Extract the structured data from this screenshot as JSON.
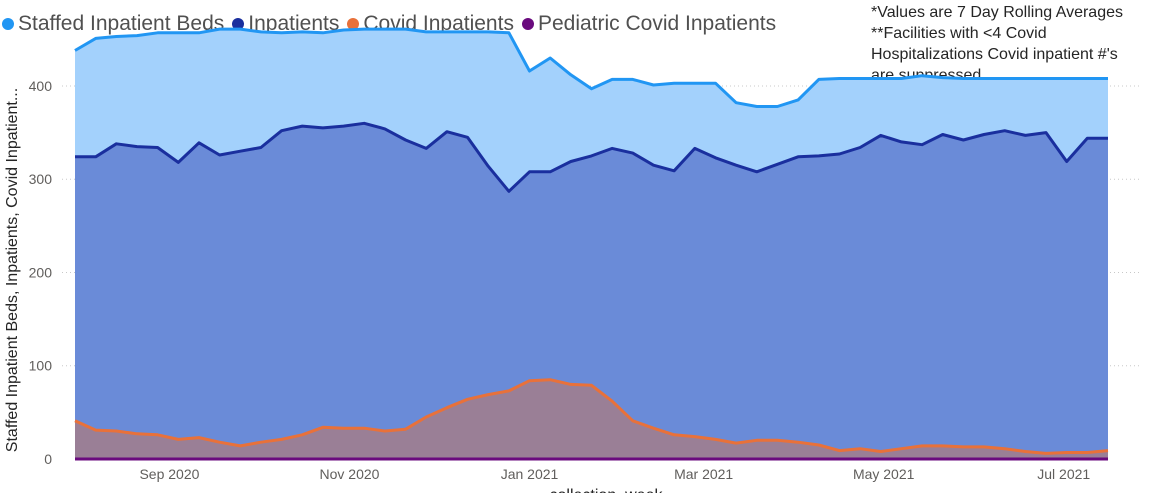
{
  "legend": [
    {
      "name": "Staffed Inpatient Beds",
      "color": "#2196f3"
    },
    {
      "name": "Inpatients",
      "color": "#1a2f9e"
    },
    {
      "name": "Covid Inpatients",
      "color": "#e8713a"
    },
    {
      "name": "Pediatric Covid Inpatients",
      "color": "#6a0a7e"
    }
  ],
  "note": {
    "line1": "*Values are 7 Day Rolling Averages",
    "line2": "**Facilities with <4 Covid",
    "line3": "Hospitalizations Covid inpatient #'s",
    "line4": "are suppressed"
  },
  "chart_data": {
    "type": "area",
    "ylabel": "Staffed Inpatient Beds, Inpatients, Covid Inpatient...",
    "xlabel": "collection_week",
    "ylim": [
      0,
      460
    ],
    "yticks": [
      0,
      100,
      200,
      300,
      400
    ],
    "xlim": [
      "2020-07-31",
      "2021-07-16"
    ],
    "xticks": [
      {
        "label": "Sep 2020",
        "date": "2020-09-01"
      },
      {
        "label": "Nov 2020",
        "date": "2020-11-01"
      },
      {
        "label": "Jan 2021",
        "date": "2021-01-01"
      },
      {
        "label": "Mar 2021",
        "date": "2021-03-01"
      },
      {
        "label": "May 2021",
        "date": "2021-05-01"
      },
      {
        "label": "Jul 2021",
        "date": "2021-07-01"
      }
    ],
    "x": [
      "2020-07-31",
      "2020-08-07",
      "2020-08-14",
      "2020-08-21",
      "2020-08-28",
      "2020-09-04",
      "2020-09-11",
      "2020-09-18",
      "2020-09-25",
      "2020-10-02",
      "2020-10-09",
      "2020-10-16",
      "2020-10-23",
      "2020-10-30",
      "2020-11-06",
      "2020-11-13",
      "2020-11-20",
      "2020-11-27",
      "2020-12-04",
      "2020-12-11",
      "2020-12-18",
      "2020-12-25",
      "2021-01-01",
      "2021-01-08",
      "2021-01-15",
      "2021-01-22",
      "2021-01-29",
      "2021-02-05",
      "2021-02-12",
      "2021-02-19",
      "2021-02-26",
      "2021-03-05",
      "2021-03-12",
      "2021-03-19",
      "2021-03-26",
      "2021-04-02",
      "2021-04-09",
      "2021-04-16",
      "2021-04-23",
      "2021-04-30",
      "2021-05-07",
      "2021-05-14",
      "2021-05-21",
      "2021-05-28",
      "2021-06-04",
      "2021-06-11",
      "2021-06-18",
      "2021-06-25",
      "2021-07-02",
      "2021-07-09",
      "2021-07-16"
    ],
    "series": [
      {
        "name": "Staffed Inpatient Beds",
        "color": "#2196f3",
        "fill": "#a3d1fc",
        "values": [
          438,
          451,
          453,
          454,
          457,
          457,
          457,
          461,
          461,
          458,
          457,
          458,
          457,
          460,
          461,
          461,
          461,
          458,
          458,
          458,
          458,
          457,
          416,
          430,
          412,
          397,
          407,
          407,
          401,
          403,
          403,
          403,
          382,
          378,
          378,
          385,
          407,
          408,
          408,
          408,
          408,
          411,
          409,
          408,
          408,
          408,
          408,
          408,
          408,
          408,
          408
        ]
      },
      {
        "name": "Inpatients",
        "color": "#1a2f9e",
        "fill": "#6a8bd8",
        "values": [
          324,
          324,
          338,
          335,
          334,
          318,
          339,
          326,
          330,
          334,
          352,
          357,
          355,
          357,
          360,
          354,
          342,
          333,
          351,
          345,
          314,
          287,
          308,
          308,
          319,
          325,
          333,
          328,
          315,
          309,
          333,
          323,
          315,
          308,
          316,
          324,
          325,
          327,
          334,
          347,
          340,
          337,
          348,
          342,
          348,
          352,
          347,
          350,
          319,
          344,
          344
        ]
      },
      {
        "name": "Covid Inpatients",
        "color": "#e8713a",
        "fill": "#9a7f96",
        "values": [
          41,
          31,
          30,
          27,
          26,
          21,
          23,
          18,
          14,
          18,
          21,
          26,
          34,
          33,
          33,
          30,
          32,
          45,
          55,
          64,
          69,
          73,
          84,
          85,
          80,
          79,
          62,
          41,
          33,
          26,
          24,
          21,
          17,
          20,
          20,
          18,
          15,
          9,
          11,
          8,
          11,
          14,
          14,
          13,
          13,
          11,
          8,
          6,
          7,
          7,
          9
        ]
      },
      {
        "name": "Pediatric Covid Inpatients",
        "color": "#6a0a7e",
        "fill": "#6a0a7e",
        "values": [
          0,
          0,
          0,
          0,
          0,
          0,
          0,
          0,
          0,
          0,
          0,
          0,
          0,
          0,
          0,
          0,
          0,
          0,
          0,
          0,
          0,
          0,
          0,
          0,
          0,
          0,
          0,
          0,
          0,
          0,
          0,
          0,
          0,
          0,
          0,
          0,
          0,
          0,
          0,
          0,
          0,
          0,
          0,
          0,
          0,
          0,
          0,
          0,
          0,
          0,
          0
        ]
      }
    ]
  }
}
